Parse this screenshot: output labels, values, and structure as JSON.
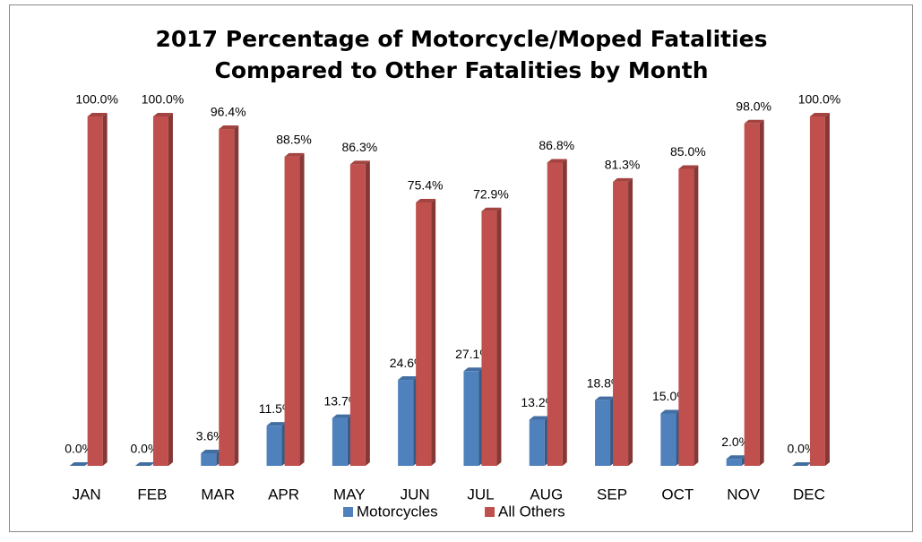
{
  "chart_data": {
    "type": "bar",
    "title": [
      "2017 Percentage of Motorcycle/Moped Fatalities",
      "Compared to Other Fatalities by Month"
    ],
    "categories": [
      "JAN",
      "FEB",
      "MAR",
      "APR",
      "MAY",
      "JUN",
      "JUL",
      "AUG",
      "SEP",
      "OCT",
      "NOV",
      "DEC"
    ],
    "series": [
      {
        "name": "Motorcycles",
        "color": "#4f81bd",
        "values": [
          0,
          0,
          3.6,
          11.5,
          13.7,
          24.6,
          27.1,
          13.2,
          18.8,
          15.0,
          2.0,
          0
        ],
        "value_labels": [
          "0.0%",
          "0.0%",
          "3.6%",
          "11.5%",
          "13.7%",
          "24.6%",
          "27.1%",
          "13.2%",
          "18.8%",
          "15.0%",
          "2.0%",
          "0.0%"
        ]
      },
      {
        "name": "All Others",
        "color": "#c0504d",
        "values": [
          100,
          100,
          96.4,
          88.5,
          86.3,
          75.4,
          72.9,
          86.8,
          81.3,
          85.0,
          98.0,
          100
        ],
        "value_labels": [
          "100.0%",
          "100.0%",
          "96.4%",
          "88.5%",
          "86.3%",
          "75.4%",
          "72.9%",
          "86.8%",
          "81.3%",
          "85.0%",
          "98.0%",
          "100.0%"
        ]
      }
    ],
    "legend": "bottom"
  }
}
